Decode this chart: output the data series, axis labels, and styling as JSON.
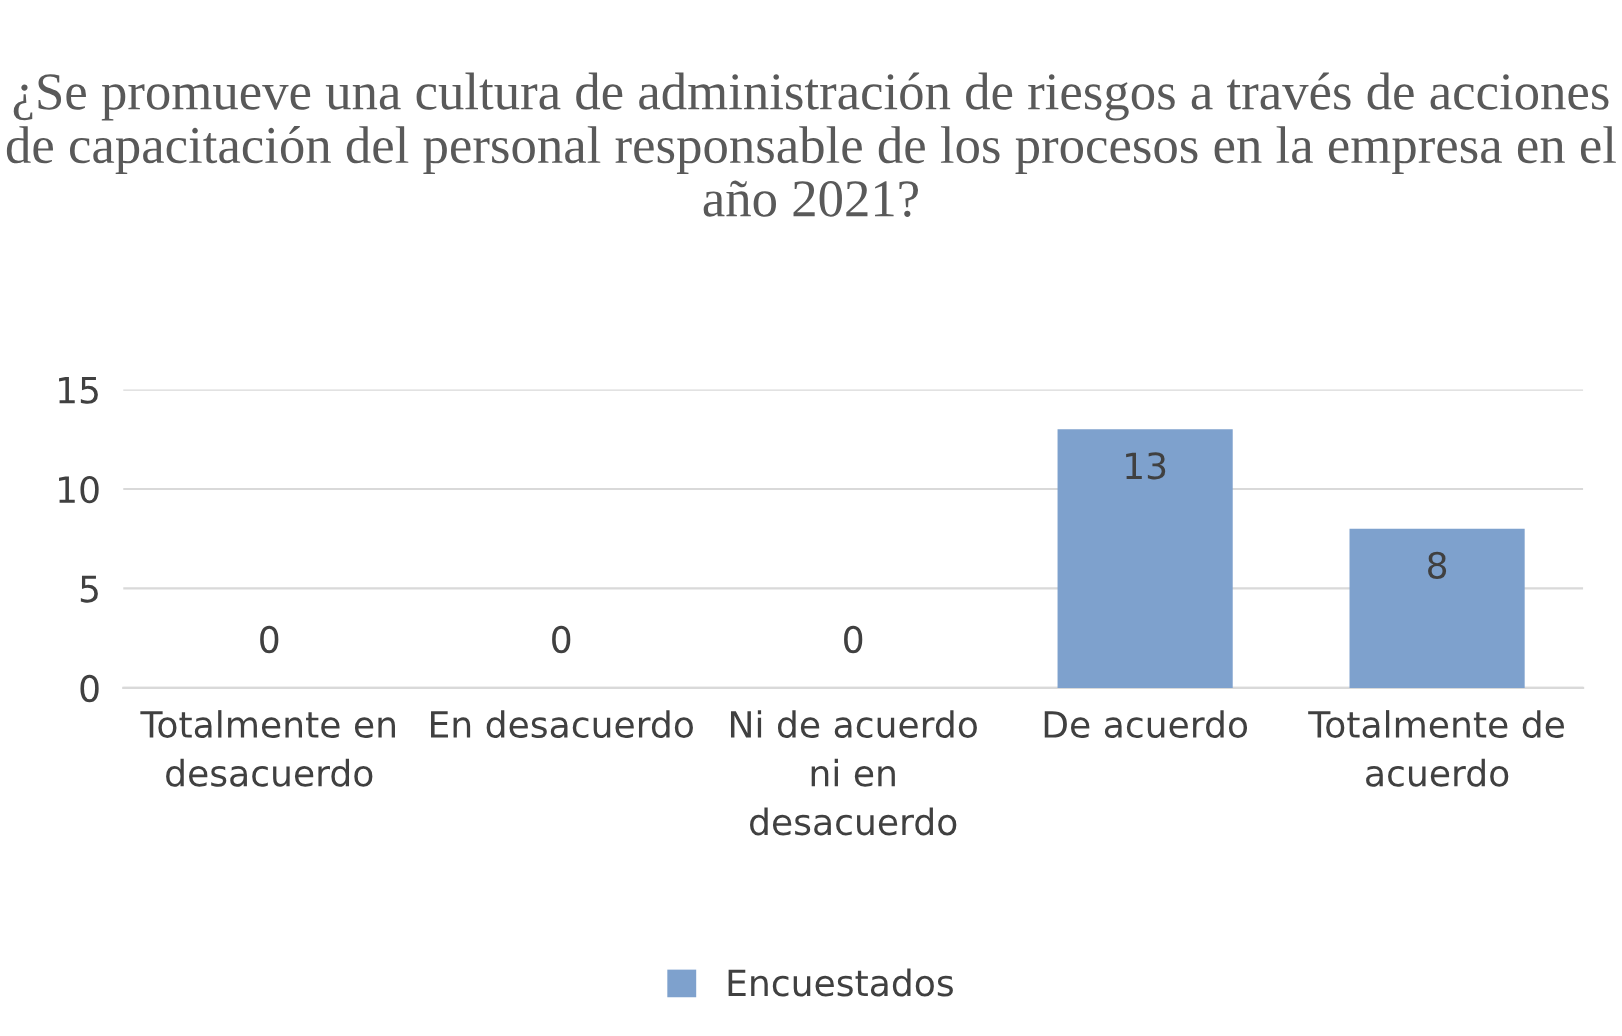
{
  "chart_data": {
    "type": "bar",
    "title": "¿Se promueve una cultura de administración de riesgos a través de acciones de capacitación del personal responsable de los procesos en la empresa en el año 2021?",
    "categories": [
      "Totalmente en desacuerdo",
      "En desacuerdo",
      "Ni de acuerdo ni en desacuerdo",
      "De acuerdo",
      "Totalmente de acuerdo"
    ],
    "series": [
      {
        "name": "Encuestados",
        "color": "#7ea1cd",
        "values": [
          0,
          0,
          0,
          13,
          8
        ]
      }
    ],
    "ylim": [
      0,
      15
    ],
    "yticks": [
      0,
      5,
      10,
      15
    ],
    "grid": "y",
    "legend": "bottom",
    "data_labels": true
  }
}
